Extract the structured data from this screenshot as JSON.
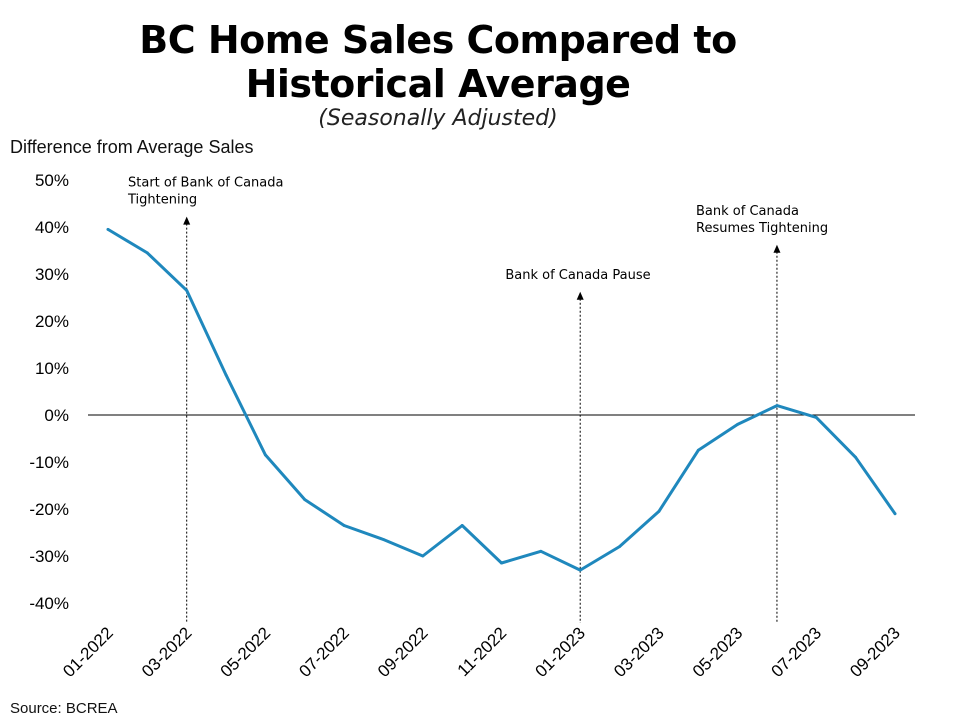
{
  "chart_data": {
    "type": "line",
    "title": [
      "BC Home Sales Compared to",
      "Historical Average"
    ],
    "subtitle": "(Seasonally Adjusted)",
    "ylabel": "Difference from Average Sales",
    "source": "Source: BCREA",
    "ylim": [
      -40,
      50
    ],
    "y_ticks": [
      "50%",
      "40%",
      "30%",
      "20%",
      "10%",
      "0%",
      "-10%",
      "-20%",
      "-30%",
      "-40%"
    ],
    "y_tick_values": [
      50,
      40,
      30,
      20,
      10,
      0,
      -10,
      -20,
      -30,
      -40
    ],
    "x_tick_labels": [
      "01-2022",
      "03-2022",
      "05-2022",
      "07-2022",
      "09-2022",
      "11-2022",
      "01-2023",
      "03-2023",
      "05-2023",
      "07-2023",
      "09-2023"
    ],
    "x_tick_month_index": [
      0,
      2,
      4,
      6,
      8,
      10,
      12,
      14,
      16,
      18,
      20
    ],
    "series": [
      {
        "color": "#1f88bd",
        "x": [
          "01-2022",
          "02-2022",
          "03-2022",
          "04-2022",
          "05-2022",
          "06-2022",
          "07-2022",
          "08-2022",
          "09-2022",
          "10-2022",
          "11-2022",
          "12-2022",
          "01-2023",
          "02-2023",
          "03-2023",
          "04-2023",
          "05-2023",
          "06-2023",
          "07-2023",
          "08-2023",
          "09-2023"
        ],
        "values": [
          39.5,
          34.5,
          26.5,
          8.5,
          -8.5,
          -18,
          -23.5,
          -26.5,
          -30,
          -23.5,
          -31.5,
          -29,
          -33,
          -28,
          -20.5,
          -7.5,
          -2,
          2,
          -0.5,
          -9,
          -21
        ]
      }
    ],
    "annotations": [
      {
        "lines": [
          "Start of Bank of Canada",
          "Tightening"
        ],
        "x_index": 2,
        "arrow_top": 42
      },
      {
        "lines": [
          "Bank of Canada Pause"
        ],
        "x_index": 12,
        "arrow_top": 26
      },
      {
        "lines": [
          "Bank of Canada",
          "Resumes Tightening"
        ],
        "x_index": 17,
        "arrow_top": 36
      }
    ],
    "grid": false,
    "legend": "none"
  }
}
